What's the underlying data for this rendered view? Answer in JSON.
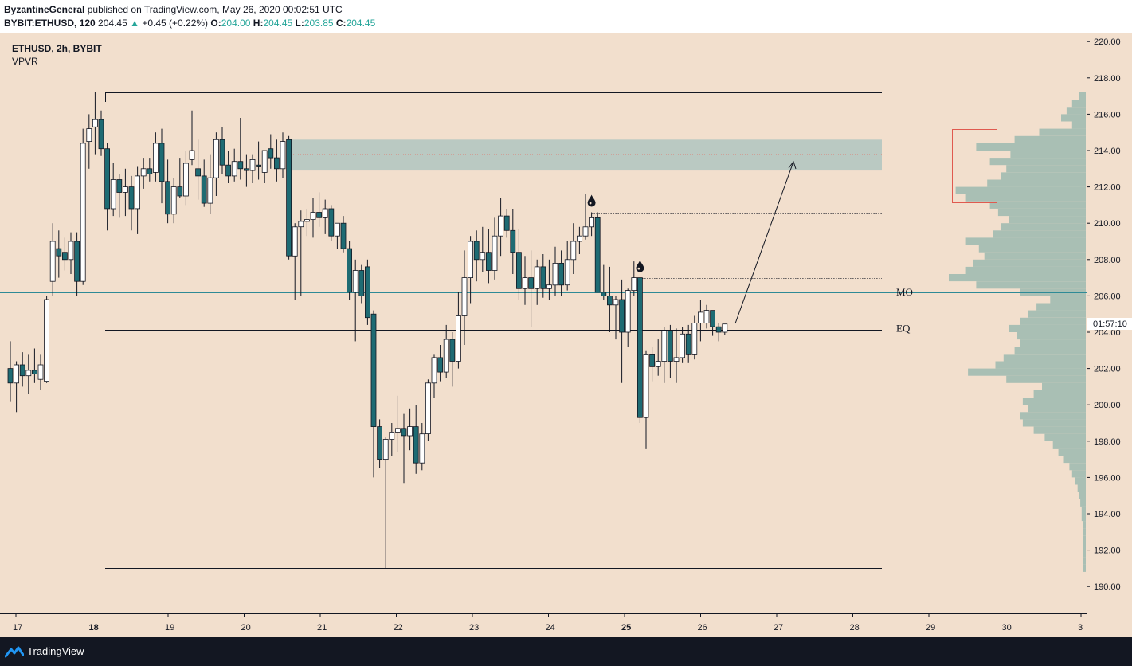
{
  "header": {
    "author": "ByzantineGeneral",
    "published_text": "published on TradingView.com, May 26, 2020 00:02:51 UTC",
    "symbol": "BYBIT:ETHUSD, 120",
    "last": "204.45",
    "change": "+0.45 (+0.22%)",
    "o_label": "O:",
    "o_value": "204.00",
    "h_label": "H:",
    "h_value": "204.45",
    "l_label": "L:",
    "l_value": "203.85",
    "c_label": "C:",
    "c_value": "204.45"
  },
  "legend": {
    "symbol_line": "ETHUSD, 2h, BYBIT",
    "indicator": "VPVR"
  },
  "price_axis": {
    "labels": [
      "220.00",
      "218.00",
      "216.00",
      "214.00",
      "212.00",
      "210.00",
      "208.00",
      "206.00",
      "204.00",
      "202.00",
      "200.00",
      "198.00",
      "196.00",
      "194.00",
      "192.00",
      "190.00"
    ],
    "countdown": "01:57:10"
  },
  "time_axis": {
    "labels": [
      "17",
      "18",
      "19",
      "20",
      "21",
      "22",
      "23",
      "24",
      "25",
      "26",
      "27",
      "28",
      "29",
      "30",
      "3"
    ],
    "bold_labels": [
      "18",
      "25"
    ]
  },
  "annotations": {
    "mo_label": "MO",
    "eq_label": "EQ",
    "mo_level": 206.2,
    "eq_level": 204.15,
    "range_high": 217.2,
    "range_low": 191.0,
    "zone_top": 214.6,
    "zone_bottom": 212.9,
    "zone_mid": 213.8
  },
  "colors": {
    "up_candle": "#ffffff",
    "down_candle": "#1e6b73",
    "mo_line": "#2e8a96",
    "zone": "#a7c2bd",
    "vpvr": "#a9bfb4",
    "highlight_box": "#e05a4f",
    "footer_bg": "#131722"
  },
  "brand": {
    "name": "TradingView"
  },
  "chart_data": {
    "type": "candlestick",
    "title": "ETHUSD, 2h, BYBIT",
    "y_range": [
      189,
      221
    ],
    "candles": [
      {
        "o": 202.0,
        "h": 203.5,
        "l": 200.2,
        "c": 201.2
      },
      {
        "o": 201.2,
        "h": 202.4,
        "l": 199.6,
        "c": 202.2
      },
      {
        "o": 202.2,
        "h": 202.9,
        "l": 201.0,
        "c": 201.6
      },
      {
        "o": 201.6,
        "h": 202.8,
        "l": 200.6,
        "c": 201.9
      },
      {
        "o": 201.9,
        "h": 203.1,
        "l": 201.2,
        "c": 201.7
      },
      {
        "o": 201.4,
        "h": 202.8,
        "l": 200.8,
        "c": 202.2
      },
      {
        "o": 201.3,
        "h": 206.0,
        "l": 201.2,
        "c": 205.8
      },
      {
        "o": 206.8,
        "h": 210.0,
        "l": 206.0,
        "c": 209.0
      },
      {
        "o": 208.6,
        "h": 209.6,
        "l": 207.0,
        "c": 208.2
      },
      {
        "o": 208.4,
        "h": 209.2,
        "l": 207.4,
        "c": 208.0
      },
      {
        "o": 208.0,
        "h": 209.5,
        "l": 207.2,
        "c": 209.0
      },
      {
        "o": 209.0,
        "h": 209.5,
        "l": 206.0,
        "c": 206.8
      },
      {
        "o": 206.8,
        "h": 215.2,
        "l": 206.6,
        "c": 214.4
      },
      {
        "o": 214.5,
        "h": 216.0,
        "l": 213.0,
        "c": 215.2
      },
      {
        "o": 215.3,
        "h": 217.2,
        "l": 213.8,
        "c": 215.7
      },
      {
        "o": 215.7,
        "h": 216.2,
        "l": 213.7,
        "c": 214.1
      },
      {
        "o": 214.1,
        "h": 214.4,
        "l": 209.6,
        "c": 210.8
      },
      {
        "o": 210.8,
        "h": 213.3,
        "l": 210.4,
        "c": 212.4
      },
      {
        "o": 212.4,
        "h": 212.7,
        "l": 210.3,
        "c": 211.7
      },
      {
        "o": 211.7,
        "h": 213.0,
        "l": 210.4,
        "c": 212.0
      },
      {
        "o": 212.0,
        "h": 212.6,
        "l": 209.6,
        "c": 210.8
      },
      {
        "o": 210.8,
        "h": 213.1,
        "l": 209.4,
        "c": 212.6
      },
      {
        "o": 212.6,
        "h": 213.6,
        "l": 211.9,
        "c": 213.0
      },
      {
        "o": 213.0,
        "h": 213.6,
        "l": 212.3,
        "c": 212.7
      },
      {
        "o": 212.8,
        "h": 215.0,
        "l": 212.3,
        "c": 214.4
      },
      {
        "o": 214.4,
        "h": 215.2,
        "l": 211.1,
        "c": 212.3
      },
      {
        "o": 212.3,
        "h": 213.5,
        "l": 210.0,
        "c": 210.5
      },
      {
        "o": 210.5,
        "h": 212.5,
        "l": 210.0,
        "c": 212.0
      },
      {
        "o": 212.0,
        "h": 213.6,
        "l": 211.4,
        "c": 211.5
      },
      {
        "o": 211.5,
        "h": 214.0,
        "l": 211.0,
        "c": 213.3
      },
      {
        "o": 213.5,
        "h": 216.2,
        "l": 213.2,
        "c": 214.0
      },
      {
        "o": 213.0,
        "h": 214.6,
        "l": 211.3,
        "c": 212.6
      },
      {
        "o": 212.6,
        "h": 213.5,
        "l": 210.9,
        "c": 211.1
      },
      {
        "o": 211.1,
        "h": 213.8,
        "l": 210.5,
        "c": 212.5
      },
      {
        "o": 212.5,
        "h": 215.0,
        "l": 211.5,
        "c": 214.6
      },
      {
        "o": 214.6,
        "h": 215.3,
        "l": 212.7,
        "c": 213.2
      },
      {
        "o": 213.2,
        "h": 214.0,
        "l": 212.2,
        "c": 212.6
      },
      {
        "o": 212.6,
        "h": 214.1,
        "l": 212.3,
        "c": 213.4
      },
      {
        "o": 213.4,
        "h": 215.8,
        "l": 212.4,
        "c": 213.0
      },
      {
        "o": 213.0,
        "h": 213.8,
        "l": 212.0,
        "c": 212.9
      },
      {
        "o": 212.9,
        "h": 213.8,
        "l": 212.2,
        "c": 213.5
      },
      {
        "o": 213.2,
        "h": 214.5,
        "l": 212.4,
        "c": 213.1
      },
      {
        "o": 212.8,
        "h": 214.0,
        "l": 212.2,
        "c": 214.0
      },
      {
        "o": 214.1,
        "h": 214.9,
        "l": 213.0,
        "c": 213.6
      },
      {
        "o": 213.6,
        "h": 214.6,
        "l": 212.3,
        "c": 213.0
      },
      {
        "o": 213.0,
        "h": 215.0,
        "l": 212.5,
        "c": 214.5
      },
      {
        "o": 214.6,
        "h": 214.8,
        "l": 208.0,
        "c": 208.2
      },
      {
        "o": 208.2,
        "h": 210.0,
        "l": 205.8,
        "c": 209.8
      },
      {
        "o": 209.8,
        "h": 210.7,
        "l": 206.0,
        "c": 210.1
      },
      {
        "o": 210.1,
        "h": 210.8,
        "l": 209.3,
        "c": 210.2
      },
      {
        "o": 210.2,
        "h": 211.4,
        "l": 209.2,
        "c": 210.6
      },
      {
        "o": 210.6,
        "h": 211.7,
        "l": 209.8,
        "c": 210.3
      },
      {
        "o": 210.3,
        "h": 211.3,
        "l": 209.4,
        "c": 210.8
      },
      {
        "o": 210.8,
        "h": 211.0,
        "l": 209.0,
        "c": 209.3
      },
      {
        "o": 209.3,
        "h": 210.0,
        "l": 208.6,
        "c": 210.0
      },
      {
        "o": 210.0,
        "h": 210.4,
        "l": 208.4,
        "c": 208.6
      },
      {
        "o": 208.6,
        "h": 209.0,
        "l": 205.8,
        "c": 206.2
      },
      {
        "o": 206.2,
        "h": 208.0,
        "l": 203.5,
        "c": 207.4
      },
      {
        "o": 207.4,
        "h": 207.7,
        "l": 205.6,
        "c": 206.0
      },
      {
        "o": 207.6,
        "h": 208.0,
        "l": 204.4,
        "c": 204.8
      },
      {
        "o": 205.0,
        "h": 205.2,
        "l": 196.0,
        "c": 198.8
      },
      {
        "o": 198.8,
        "h": 199.2,
        "l": 196.5,
        "c": 197.0
      },
      {
        "o": 197.0,
        "h": 198.2,
        "l": 191.0,
        "c": 198.1
      },
      {
        "o": 198.1,
        "h": 199.0,
        "l": 197.2,
        "c": 198.5
      },
      {
        "o": 198.5,
        "h": 200.5,
        "l": 197.4,
        "c": 198.7
      },
      {
        "o": 198.7,
        "h": 199.5,
        "l": 195.7,
        "c": 198.3
      },
      {
        "o": 198.3,
        "h": 199.8,
        "l": 197.5,
        "c": 198.8
      },
      {
        "o": 198.8,
        "h": 200.0,
        "l": 196.2,
        "c": 196.8
      },
      {
        "o": 196.8,
        "h": 199.0,
        "l": 196.4,
        "c": 198.4
      },
      {
        "o": 198.4,
        "h": 201.4,
        "l": 198.0,
        "c": 201.2
      },
      {
        "o": 201.2,
        "h": 202.8,
        "l": 200.4,
        "c": 202.6
      },
      {
        "o": 202.6,
        "h": 203.3,
        "l": 201.3,
        "c": 201.8
      },
      {
        "o": 201.8,
        "h": 204.4,
        "l": 201.5,
        "c": 203.6
      },
      {
        "o": 203.6,
        "h": 204.0,
        "l": 201.0,
        "c": 202.4
      },
      {
        "o": 202.4,
        "h": 206.2,
        "l": 202.0,
        "c": 204.9
      },
      {
        "o": 204.9,
        "h": 208.5,
        "l": 203.3,
        "c": 207.0
      },
      {
        "o": 207.0,
        "h": 209.3,
        "l": 205.6,
        "c": 209.0
      },
      {
        "o": 209.0,
        "h": 209.6,
        "l": 206.8,
        "c": 208.0
      },
      {
        "o": 208.0,
        "h": 209.8,
        "l": 207.3,
        "c": 208.4
      },
      {
        "o": 208.4,
        "h": 209.7,
        "l": 206.7,
        "c": 207.4
      },
      {
        "o": 207.4,
        "h": 210.3,
        "l": 206.9,
        "c": 209.3
      },
      {
        "o": 209.3,
        "h": 211.4,
        "l": 208.2,
        "c": 210.4
      },
      {
        "o": 210.4,
        "h": 210.8,
        "l": 209.2,
        "c": 209.6
      },
      {
        "o": 209.6,
        "h": 210.8,
        "l": 207.2,
        "c": 208.4
      },
      {
        "o": 208.4,
        "h": 209.7,
        "l": 205.8,
        "c": 206.4
      },
      {
        "o": 206.4,
        "h": 208.2,
        "l": 205.5,
        "c": 207.0
      },
      {
        "o": 207.0,
        "h": 208.5,
        "l": 204.3,
        "c": 206.4
      },
      {
        "o": 206.4,
        "h": 208.0,
        "l": 205.5,
        "c": 207.6
      },
      {
        "o": 207.6,
        "h": 208.3,
        "l": 205.9,
        "c": 206.4
      },
      {
        "o": 206.4,
        "h": 208.0,
        "l": 205.8,
        "c": 206.6
      },
      {
        "o": 206.6,
        "h": 208.7,
        "l": 206.0,
        "c": 207.8
      },
      {
        "o": 207.8,
        "h": 208.5,
        "l": 206.0,
        "c": 206.6
      },
      {
        "o": 206.6,
        "h": 209.0,
        "l": 206.3,
        "c": 208.0
      },
      {
        "o": 208.0,
        "h": 210.0,
        "l": 207.2,
        "c": 209.0
      },
      {
        "o": 209.0,
        "h": 209.8,
        "l": 208.3,
        "c": 209.3
      },
      {
        "o": 209.3,
        "h": 211.6,
        "l": 209.1,
        "c": 209.8
      },
      {
        "o": 209.8,
        "h": 210.6,
        "l": 209.3,
        "c": 210.3
      },
      {
        "o": 210.3,
        "h": 210.6,
        "l": 206.2,
        "c": 206.2
      },
      {
        "o": 206.2,
        "h": 207.7,
        "l": 205.8,
        "c": 206.0
      },
      {
        "o": 206.0,
        "h": 207.6,
        "l": 204.0,
        "c": 205.5
      },
      {
        "o": 205.5,
        "h": 206.0,
        "l": 203.6,
        "c": 205.8
      },
      {
        "o": 205.8,
        "h": 206.9,
        "l": 201.2,
        "c": 204.0
      },
      {
        "o": 204.0,
        "h": 206.4,
        "l": 203.2,
        "c": 206.3
      },
      {
        "o": 206.3,
        "h": 207.9,
        "l": 206.0,
        "c": 207.0
      },
      {
        "o": 207.0,
        "h": 207.0,
        "l": 199.0,
        "c": 199.3
      },
      {
        "o": 199.3,
        "h": 203.0,
        "l": 197.6,
        "c": 202.8
      },
      {
        "o": 202.8,
        "h": 203.2,
        "l": 201.3,
        "c": 202.1
      },
      {
        "o": 202.1,
        "h": 203.6,
        "l": 201.6,
        "c": 202.4
      },
      {
        "o": 202.4,
        "h": 204.3,
        "l": 201.2,
        "c": 204.1
      },
      {
        "o": 204.1,
        "h": 204.4,
        "l": 201.5,
        "c": 202.4
      },
      {
        "o": 202.4,
        "h": 204.2,
        "l": 201.2,
        "c": 202.6
      },
      {
        "o": 202.6,
        "h": 204.3,
        "l": 202.3,
        "c": 203.9
      },
      {
        "o": 203.9,
        "h": 204.4,
        "l": 202.3,
        "c": 202.8
      },
      {
        "o": 202.8,
        "h": 204.9,
        "l": 202.5,
        "c": 204.5
      },
      {
        "o": 204.5,
        "h": 205.8,
        "l": 203.5,
        "c": 205.1
      },
      {
        "o": 204.5,
        "h": 205.5,
        "l": 204.2,
        "c": 205.2
      },
      {
        "o": 205.2,
        "h": 205.2,
        "l": 203.8,
        "c": 204.3
      },
      {
        "o": 204.3,
        "h": 204.5,
        "l": 203.5,
        "c": 204.0
      },
      {
        "o": 204.0,
        "h": 204.45,
        "l": 203.85,
        "c": 204.45
      }
    ],
    "vpvr": [
      {
        "p": 217.0,
        "w": 0.05
      },
      {
        "p": 216.6,
        "w": 0.1
      },
      {
        "p": 216.2,
        "w": 0.14
      },
      {
        "p": 215.8,
        "w": 0.18
      },
      {
        "p": 215.4,
        "w": 0.1
      },
      {
        "p": 215.0,
        "w": 0.34
      },
      {
        "p": 214.6,
        "w": 0.52
      },
      {
        "p": 214.2,
        "w": 0.8
      },
      {
        "p": 213.8,
        "w": 0.55
      },
      {
        "p": 213.4,
        "w": 0.7
      },
      {
        "p": 213.0,
        "w": 0.58
      },
      {
        "p": 212.6,
        "w": 0.62
      },
      {
        "p": 212.2,
        "w": 0.72
      },
      {
        "p": 211.8,
        "w": 0.95
      },
      {
        "p": 211.4,
        "w": 0.88
      },
      {
        "p": 211.0,
        "w": 0.7
      },
      {
        "p": 210.6,
        "w": 0.64
      },
      {
        "p": 210.2,
        "w": 0.56
      },
      {
        "p": 209.8,
        "w": 0.62
      },
      {
        "p": 209.4,
        "w": 0.68
      },
      {
        "p": 209.0,
        "w": 0.88
      },
      {
        "p": 208.6,
        "w": 0.78
      },
      {
        "p": 208.2,
        "w": 0.74
      },
      {
        "p": 207.8,
        "w": 0.82
      },
      {
        "p": 207.4,
        "w": 0.88
      },
      {
        "p": 207.0,
        "w": 1.0
      },
      {
        "p": 206.6,
        "w": 0.8
      },
      {
        "p": 206.2,
        "w": 0.48
      },
      {
        "p": 205.8,
        "w": 0.26
      },
      {
        "p": 205.4,
        "w": 0.36
      },
      {
        "p": 205.0,
        "w": 0.42
      },
      {
        "p": 204.6,
        "w": 0.48
      },
      {
        "p": 204.2,
        "w": 0.56
      },
      {
        "p": 203.8,
        "w": 0.5
      },
      {
        "p": 203.4,
        "w": 0.48
      },
      {
        "p": 203.0,
        "w": 0.52
      },
      {
        "p": 202.6,
        "w": 0.6
      },
      {
        "p": 202.2,
        "w": 0.66
      },
      {
        "p": 201.8,
        "w": 0.86
      },
      {
        "p": 201.4,
        "w": 0.58
      },
      {
        "p": 201.0,
        "w": 0.32
      },
      {
        "p": 200.6,
        "w": 0.38
      },
      {
        "p": 200.2,
        "w": 0.46
      },
      {
        "p": 199.8,
        "w": 0.42
      },
      {
        "p": 199.4,
        "w": 0.48
      },
      {
        "p": 199.0,
        "w": 0.46
      },
      {
        "p": 198.6,
        "w": 0.38
      },
      {
        "p": 198.2,
        "w": 0.3
      },
      {
        "p": 197.8,
        "w": 0.24
      },
      {
        "p": 197.4,
        "w": 0.2
      },
      {
        "p": 197.0,
        "w": 0.16
      },
      {
        "p": 196.6,
        "w": 0.12
      },
      {
        "p": 196.2,
        "w": 0.1
      },
      {
        "p": 195.8,
        "w": 0.08
      },
      {
        "p": 195.4,
        "w": 0.06
      },
      {
        "p": 195.0,
        "w": 0.05
      },
      {
        "p": 194.6,
        "w": 0.04
      },
      {
        "p": 194.2,
        "w": 0.03
      },
      {
        "p": 193.8,
        "w": 0.03
      },
      {
        "p": 193.4,
        "w": 0.02
      },
      {
        "p": 193.0,
        "w": 0.02
      },
      {
        "p": 192.6,
        "w": 0.02
      },
      {
        "p": 192.2,
        "w": 0.02
      },
      {
        "p": 191.8,
        "w": 0.02
      },
      {
        "p": 191.4,
        "w": 0.02
      },
      {
        "p": 191.0,
        "w": 0.02
      }
    ]
  }
}
